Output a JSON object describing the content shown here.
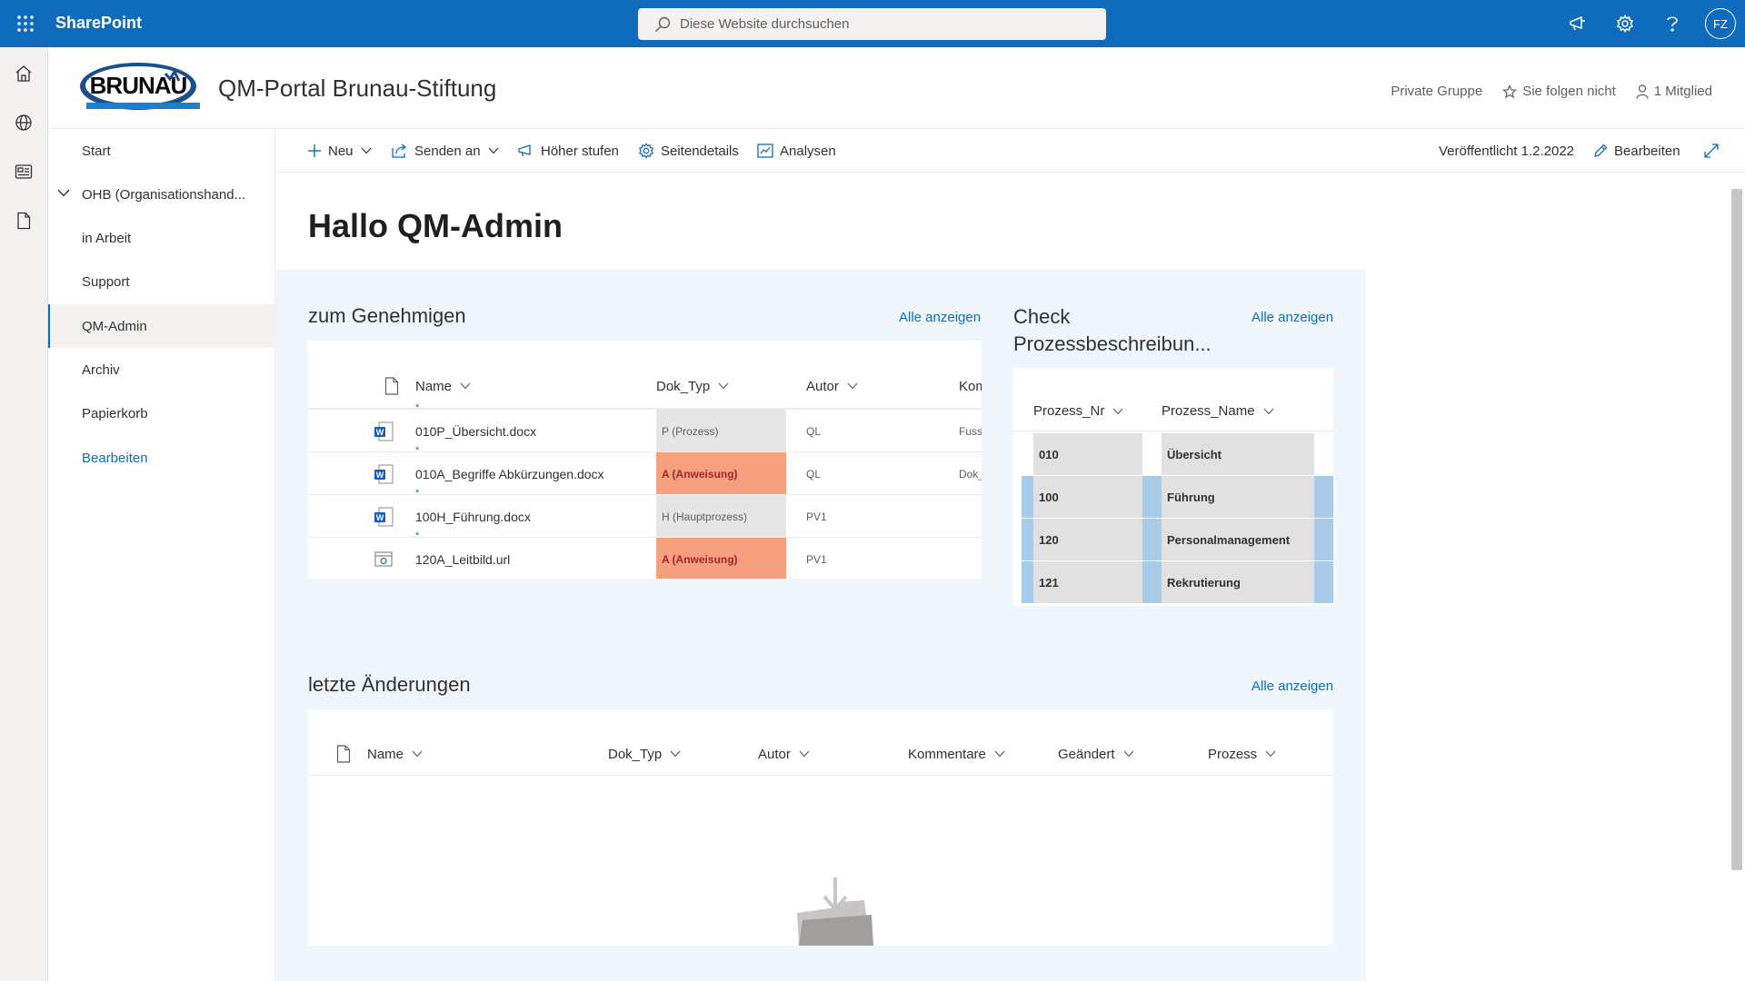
{
  "suite": {
    "app_name": "SharePoint",
    "search_placeholder": "Diese Website durchsuchen",
    "avatar_initials": "FZ"
  },
  "header": {
    "logo_text": "BRUNAU",
    "site_title": "QM-Portal Brunau-Stiftung",
    "group_type": "Private Gruppe",
    "follow_label": "Sie folgen nicht",
    "members_label": "1 Mitglied"
  },
  "nav": {
    "items": [
      {
        "label": "Start"
      },
      {
        "label": "OHB (Organisationshand..."
      },
      {
        "label": "in Arbeit"
      },
      {
        "label": "Support"
      },
      {
        "label": "QM-Admin"
      },
      {
        "label": "Archiv"
      },
      {
        "label": "Papierkorb"
      },
      {
        "label": "Bearbeiten"
      }
    ],
    "active": "QM-Admin"
  },
  "commandbar": {
    "new_label": "Neu",
    "send_label": "Senden an",
    "promote_label": "Höher stufen",
    "details_label": "Seitendetails",
    "analytics_label": "Analysen",
    "published_label": "Veröffentlicht 1.2.2022",
    "edit_label": "Bearbeiten"
  },
  "page": {
    "greeting": "Hallo QM-Admin"
  },
  "approve": {
    "title": "zum Genehmigen",
    "see_all": "Alle anzeigen",
    "columns": [
      "Name",
      "Dok_Typ",
      "Autor",
      "Kom"
    ],
    "rows": [
      {
        "icon": "word-icon",
        "name": "010P_Übersicht.docx",
        "dok_typ": "P (Prozess)",
        "dok_style": "grey",
        "autor": "QL",
        "kommentar": "Fussz"
      },
      {
        "icon": "word-icon",
        "name": "010A_Begriffe Abkürzungen.docx",
        "dok_typ": "A (Anweisung)",
        "dok_style": "orange",
        "autor": "QL",
        "kommentar": "Dok_"
      },
      {
        "icon": "word-icon",
        "name": "100H_Führung.docx",
        "dok_typ": "H (Hauptprozess)",
        "dok_style": "grey",
        "autor": "PV1",
        "kommentar": ""
      },
      {
        "icon": "url-file-icon",
        "name": "120A_Leitbild.url",
        "dok_typ": "A (Anweisung)",
        "dok_style": "orange",
        "autor": "PV1",
        "kommentar": ""
      }
    ]
  },
  "check": {
    "title_line1": "Check",
    "title_line2": "Prozessbeschreibun...",
    "see_all": "Alle anzeigen",
    "columns": [
      "Prozess_Nr",
      "Prozess_Name"
    ],
    "rows": [
      {
        "nr": "010",
        "name": "Übersicht",
        "highlight": false
      },
      {
        "nr": "100",
        "name": "Führung",
        "highlight": true
      },
      {
        "nr": "120",
        "name": "Personalmanagement",
        "highlight": true
      },
      {
        "nr": "121",
        "name": "Rekrutierung",
        "highlight": true
      }
    ]
  },
  "recent": {
    "title": "letzte Änderungen",
    "see_all": "Alle anzeigen",
    "columns": [
      "Name",
      "Dok_Typ",
      "Autor",
      "Kommentare",
      "Geändert",
      "Prozess"
    ]
  },
  "colors": {
    "suite_blue": "#0f6cbd",
    "section_bg": "#eff6fc",
    "dok_orange": "#f7a07f",
    "dok_grey": "#e6e6e6",
    "process_blue": "#a7cbe9"
  }
}
